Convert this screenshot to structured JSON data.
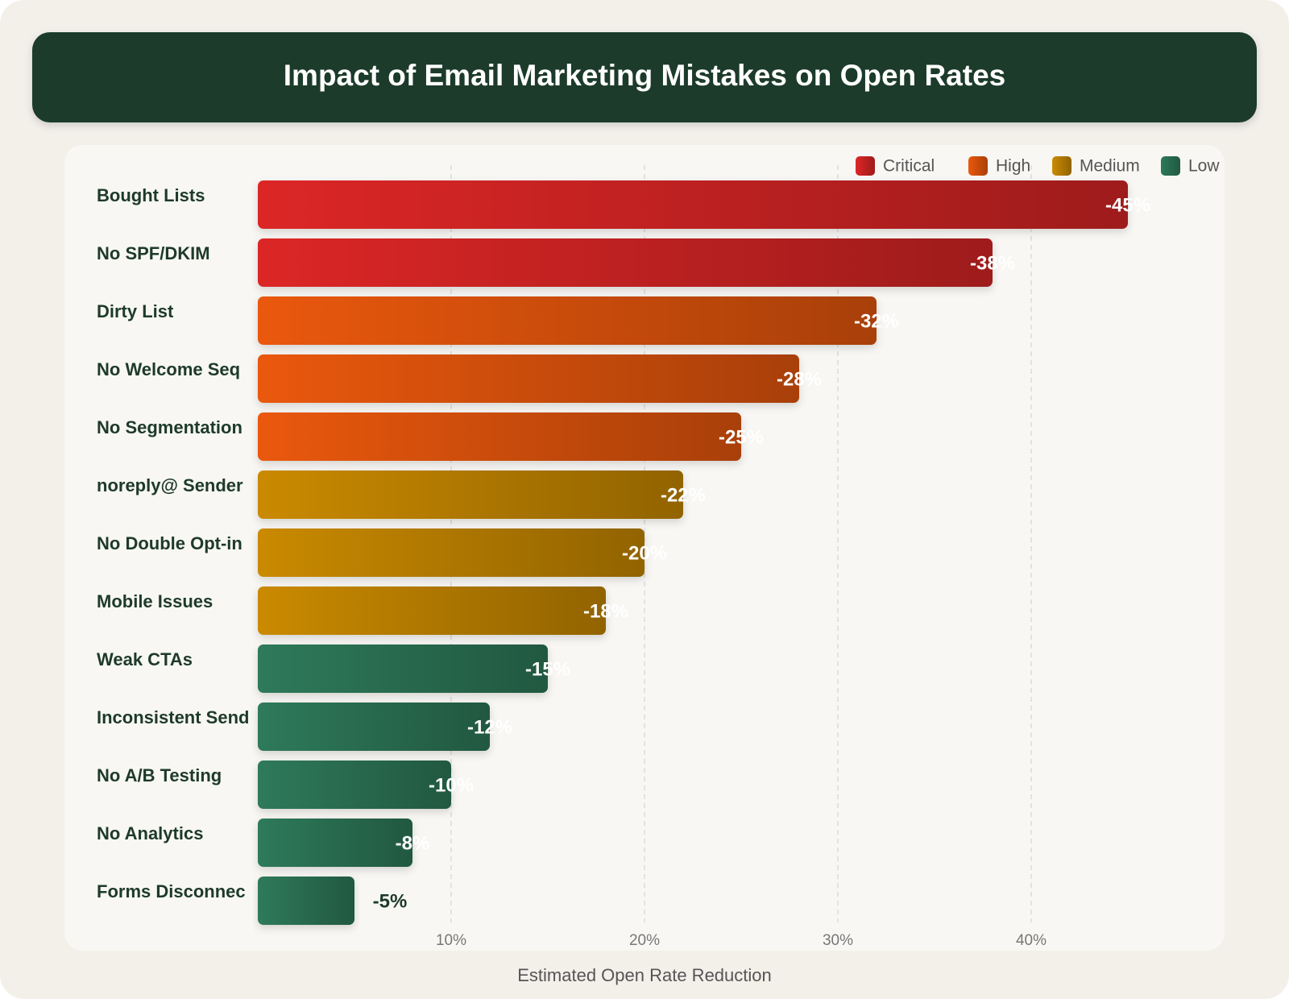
{
  "chart_data": {
    "type": "bar",
    "orientation": "horizontal",
    "title": "Impact of Email Marketing Mistakes on Open Rates",
    "x_label": "Estimated Open Rate Reduction",
    "categories": [
      "Bought Lists",
      "No SPF/DKIM",
      "Dirty List",
      "No Welcome Seq",
      "No Segmentation",
      "noreply@ Sender",
      "No Double Opt-in",
      "Mobile Issues",
      "Weak CTAs",
      "Inconsistent Send",
      "No A/B Testing",
      "No Analytics",
      "Forms Disconnec"
    ],
    "series": [
      {
        "name": "Critical",
        "color": "#dc2626",
        "values": [
          45,
          38,
          null,
          null,
          null,
          null,
          null,
          null,
          null,
          null,
          null,
          null,
          null
        ],
        "value_labels": [
          "-45%",
          "-38%",
          null,
          null,
          null,
          null,
          null,
          null,
          null,
          null,
          null,
          null,
          null
        ]
      },
      {
        "name": "High",
        "color": "#ea580c",
        "values": [
          null,
          null,
          32,
          28,
          25,
          null,
          null,
          null,
          null,
          null,
          null,
          null,
          null
        ],
        "value_labels": [
          null,
          null,
          "-32%",
          "-28%",
          "-25%",
          null,
          null,
          null,
          null,
          null,
          null,
          null,
          null
        ]
      },
      {
        "name": "Medium",
        "color": "#ca8a04",
        "values": [
          null,
          null,
          null,
          null,
          null,
          22,
          20,
          18,
          null,
          null,
          null,
          null,
          null
        ],
        "value_labels": [
          null,
          null,
          null,
          null,
          null,
          "-22%",
          "-20%",
          "-18%",
          null,
          null,
          null,
          null,
          null
        ]
      },
      {
        "name": "Low",
        "color": "#2d7a5a",
        "values": [
          null,
          null,
          null,
          null,
          null,
          null,
          null,
          null,
          15,
          12,
          10,
          8,
          5
        ],
        "value_labels": [
          null,
          null,
          null,
          null,
          null,
          null,
          null,
          null,
          "-15%",
          "-12%",
          "-10%",
          "-8%",
          "-5%"
        ]
      }
    ],
    "xlim": [
      0,
      50
    ],
    "xticks": [
      {
        "value": 10,
        "label": "10%"
      },
      {
        "value": 20,
        "label": "20%"
      },
      {
        "value": 30,
        "label": "30%"
      },
      {
        "value": 40,
        "label": "40%"
      }
    ],
    "grid": true,
    "legend": "top-right"
  }
}
